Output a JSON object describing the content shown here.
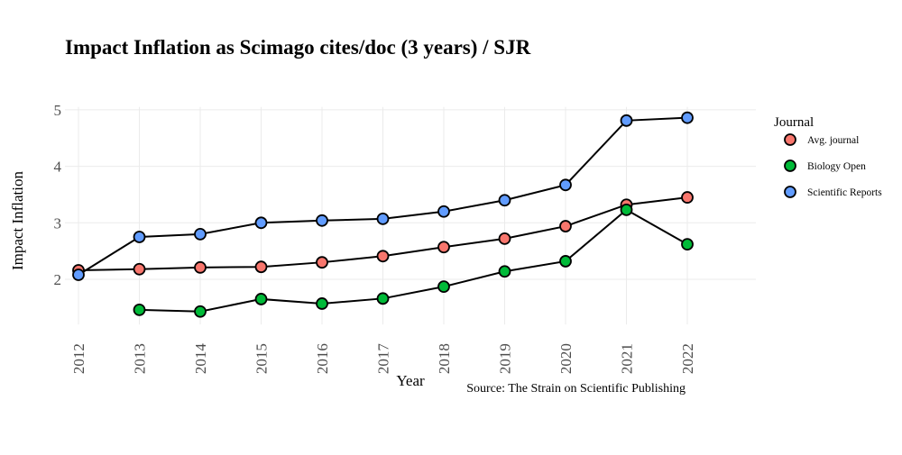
{
  "chart_data": {
    "type": "line",
    "title": "Impact Inflation as Scimago cites/doc (3 years) / SJR",
    "xlabel": "Year",
    "ylabel": "Impact Inflation",
    "caption": "Source: The Strain on Scientific Publishing",
    "legend_title": "Journal",
    "legend_position": "right",
    "x": [
      2012,
      2013,
      2014,
      2015,
      2016,
      2017,
      2018,
      2019,
      2020,
      2021,
      2022
    ],
    "x_ticks": [
      "2012",
      "2013",
      "2014",
      "2015",
      "2016",
      "2017",
      "2018",
      "2019",
      "2020",
      "2021",
      "2022"
    ],
    "y_ticks": [
      "2",
      "3",
      "4",
      "5"
    ],
    "ylim": [
      1.2,
      5.05
    ],
    "grid": true,
    "series": [
      {
        "name": "Avg. journal",
        "color": "#F8766D",
        "values": [
          2.16,
          2.18,
          2.21,
          2.22,
          2.3,
          2.41,
          2.57,
          2.72,
          2.94,
          3.32,
          3.45
        ]
      },
      {
        "name": "Biology Open",
        "color": "#00BA38",
        "values": [
          null,
          1.46,
          1.43,
          1.65,
          1.57,
          1.66,
          1.87,
          2.14,
          2.32,
          3.23,
          2.62
        ]
      },
      {
        "name": "Scientific Reports",
        "color": "#619CFF",
        "values": [
          2.08,
          2.75,
          2.8,
          3.0,
          3.04,
          3.07,
          3.2,
          3.4,
          3.67,
          4.81,
          4.86
        ]
      }
    ]
  }
}
